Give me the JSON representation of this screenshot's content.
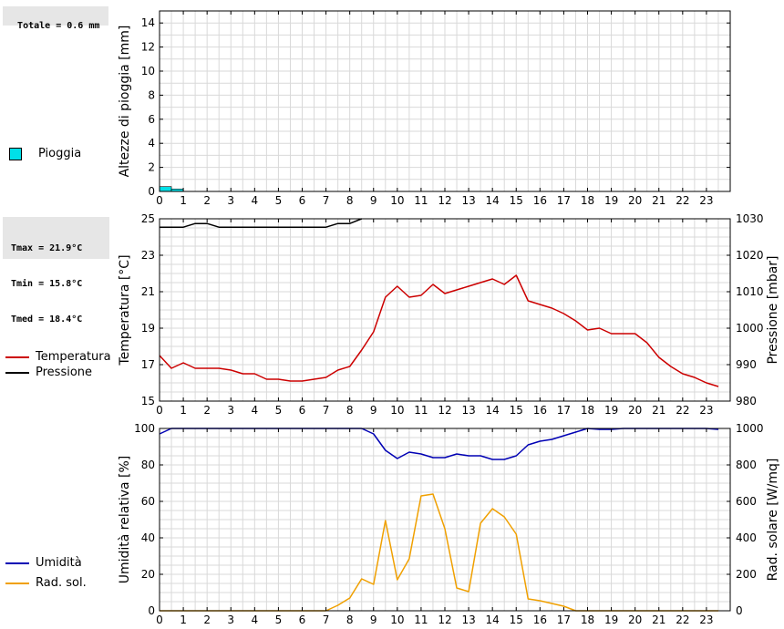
{
  "info": {
    "rain_total": "Totale = 0.6 mm",
    "tmax": "Tmax = 21.9°C",
    "tmin": "Tmin = 15.8°C",
    "tmed": "Tmed = 18.4°C"
  },
  "colors": {
    "rain": "#00e0e8",
    "temperature": "#cc0000",
    "pressure": "#000000",
    "humidity": "#0000b4",
    "radiation": "#f0a000",
    "grid": "#d9d9d9"
  },
  "chart_data": [
    {
      "type": "bar",
      "ylabel": "Altezze di pioggia [mm]",
      "ylim": [
        0,
        15
      ],
      "yticks": [
        0,
        2,
        4,
        6,
        8,
        10,
        12,
        14
      ],
      "xlim": [
        0,
        24
      ],
      "xticks": [
        0,
        1,
        2,
        3,
        4,
        5,
        6,
        7,
        8,
        9,
        10,
        11,
        12,
        13,
        14,
        15,
        16,
        17,
        18,
        19,
        20,
        21,
        22,
        23
      ],
      "grid": true,
      "legend": "left",
      "series": [
        {
          "name": "Pioggia",
          "x": [
            0,
            0.5,
            1
          ],
          "values": [
            0.4,
            0.2,
            0
          ]
        }
      ]
    },
    {
      "type": "line",
      "ylabel": "Temperatura [°C]",
      "y2label": "Pressione [mbar]",
      "ylim": [
        15,
        25
      ],
      "yticks": [
        15,
        17,
        19,
        21,
        23,
        25
      ],
      "y2lim": [
        980,
        1030
      ],
      "y2ticks": [
        980,
        990,
        1000,
        1010,
        1020,
        1030
      ],
      "xlim": [
        0,
        24
      ],
      "xticks": [
        0,
        1,
        2,
        3,
        4,
        5,
        6,
        7,
        8,
        9,
        10,
        11,
        12,
        13,
        14,
        15,
        16,
        17,
        18,
        19,
        20,
        21,
        22,
        23
      ],
      "grid": true,
      "legend": "left",
      "series": [
        {
          "name": "Temperatura",
          "axis": "left",
          "x": [
            0,
            0.5,
            1,
            1.5,
            2,
            2.5,
            3,
            3.5,
            4,
            4.5,
            5,
            5.5,
            6,
            6.5,
            7,
            7.5,
            8,
            8.5,
            9,
            9.5,
            10,
            10.5,
            11,
            11.5,
            12,
            12.5,
            13,
            13.5,
            14,
            14.5,
            15,
            15.5,
            16,
            16.5,
            17,
            17.5,
            18,
            18.5,
            19,
            19.5,
            20,
            20.5,
            21,
            21.5,
            22,
            22.5,
            23,
            23.5
          ],
          "values": [
            17.5,
            16.8,
            17.1,
            16.8,
            16.8,
            16.8,
            16.7,
            16.5,
            16.5,
            16.2,
            16.2,
            16.1,
            16.1,
            16.2,
            16.3,
            16.7,
            16.9,
            17.8,
            18.8,
            20.7,
            21.3,
            20.7,
            20.8,
            21.4,
            20.9,
            21.1,
            21.3,
            21.5,
            21.7,
            21.4,
            21.9,
            20.5,
            20.3,
            20.1,
            19.8,
            19.4,
            18.9,
            19.0,
            18.7,
            18.7,
            18.7,
            18.2,
            17.4,
            16.9,
            16.5,
            16.3,
            16.0,
            15.8
          ]
        },
        {
          "name": "Pressione",
          "axis": "right",
          "x": [
            0,
            0.5,
            1,
            1.5,
            2,
            2.5,
            3,
            3.5,
            4,
            4.5,
            5,
            5.5,
            6,
            6.5,
            7,
            7.5,
            8,
            8.5
          ],
          "values": [
            1027.7,
            1027.7,
            1027.7,
            1028.7,
            1028.7,
            1027.7,
            1027.7,
            1027.7,
            1027.7,
            1027.7,
            1027.7,
            1027.7,
            1027.7,
            1027.7,
            1027.7,
            1028.7,
            1028.7,
            1030
          ]
        }
      ]
    },
    {
      "type": "line",
      "ylabel": "Umidità relativa [%]",
      "y2label": "Rad. solare [W/mq]",
      "ylim": [
        0,
        100
      ],
      "yticks": [
        0,
        20,
        40,
        60,
        80,
        100
      ],
      "y2lim": [
        0,
        1000
      ],
      "y2ticks": [
        0,
        200,
        400,
        600,
        800,
        1000
      ],
      "xlim": [
        0,
        24
      ],
      "xticks": [
        0,
        1,
        2,
        3,
        4,
        5,
        6,
        7,
        8,
        9,
        10,
        11,
        12,
        13,
        14,
        15,
        16,
        17,
        18,
        19,
        20,
        21,
        22,
        23
      ],
      "grid": true,
      "legend": "left",
      "series": [
        {
          "name": "Umidità",
          "axis": "left",
          "x": [
            0,
            0.5,
            1,
            2,
            3,
            4,
            5,
            6,
            7,
            8,
            8.5,
            9,
            9.5,
            10,
            10.5,
            11,
            11.5,
            12,
            12.5,
            13,
            13.5,
            14,
            14.5,
            15,
            15.5,
            16,
            16.5,
            17,
            17.5,
            18,
            18.5,
            19,
            19.5,
            20,
            21,
            22,
            23,
            23.5
          ],
          "values": [
            97,
            100,
            100,
            100,
            100,
            100,
            100,
            100,
            100,
            100,
            100,
            97,
            88,
            83.5,
            87,
            86,
            84,
            84,
            86,
            85,
            85,
            83,
            83,
            85,
            91,
            93,
            94,
            96,
            98,
            100,
            99.5,
            99.5,
            100,
            100,
            100,
            100,
            100,
            99.5
          ]
        },
        {
          "name": "Rad. sol.",
          "axis": "right",
          "x": [
            0,
            1,
            2,
            3,
            4,
            5,
            6,
            7,
            7.5,
            8,
            8.5,
            9,
            9.5,
            10,
            10.5,
            11,
            11.5,
            12,
            12.5,
            13,
            13.5,
            14,
            14.5,
            15,
            15.5,
            16,
            16.5,
            17,
            17.5,
            18,
            19,
            20,
            21,
            22,
            23,
            23.5
          ],
          "values": [
            0,
            0,
            0,
            0,
            0,
            0,
            0,
            0,
            30,
            70,
            175,
            145,
            495,
            170,
            285,
            630,
            640,
            450,
            125,
            105,
            480,
            560,
            515,
            420,
            65,
            55,
            40,
            25,
            0,
            0,
            0,
            0,
            0,
            0,
            0,
            0
          ]
        }
      ]
    }
  ]
}
